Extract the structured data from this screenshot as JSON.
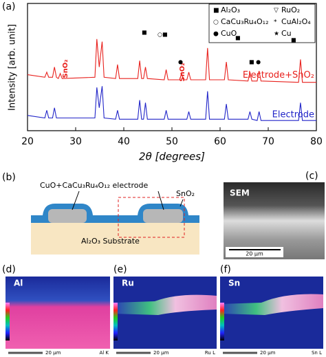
{
  "chart_data": {
    "type": "line",
    "panel_label": "(a)",
    "x_label": "2θ [degrees]",
    "y_label": "Intensity [arb. unit]",
    "xlim": [
      20,
      80
    ],
    "xticks": [
      20,
      30,
      40,
      50,
      60,
      70,
      80
    ],
    "ylim": [
      0,
      100
    ],
    "x": [
      20,
      23.6,
      24.0,
      24.4,
      25.2,
      25.6,
      26.0,
      26.4,
      26.8,
      27.2,
      34.0,
      34.4,
      34.9,
      35.5,
      35.9,
      38.3,
      38.7,
      39.1,
      42.9,
      43.3,
      43.7,
      44.1,
      44.5,
      44.9,
      48.4,
      48.8,
      49.2,
      51.6,
      52.0,
      52.4,
      53.1,
      53.5,
      53.9,
      57.0,
      57.4,
      57.8,
      60.9,
      61.3,
      61.7,
      65.8,
      66.2,
      66.6,
      67.7,
      68.1,
      68.5,
      76.3,
      76.7,
      77.1,
      80
    ],
    "series": [
      {
        "name": "Electrode+SnO₂",
        "color": "#e8201c",
        "values": [
          44,
          42,
          46,
          42,
          42,
          50,
          42,
          41,
          45,
          41,
          42,
          72,
          50,
          70,
          42,
          41,
          52,
          41,
          41,
          55,
          41,
          41,
          50,
          41,
          40,
          48,
          40,
          40,
          45,
          40,
          40,
          46,
          40,
          40,
          65,
          40,
          40,
          54,
          40,
          39,
          46,
          39,
          39,
          47,
          39,
          38,
          56,
          38,
          38
        ]
      },
      {
        "name": "Electrode",
        "color": "#2024c8",
        "values": [
          12,
          10,
          16,
          10,
          10,
          18,
          10,
          10,
          10,
          10,
          10,
          34,
          18,
          35,
          10,
          9,
          16,
          9,
          9,
          24,
          9,
          9,
          22,
          9,
          9,
          16,
          9,
          9,
          9,
          9,
          9,
          15,
          9,
          9,
          31,
          9,
          9,
          21,
          9,
          9,
          15,
          9,
          8,
          15,
          8,
          8,
          22,
          8,
          8
        ]
      }
    ],
    "annotations": [
      "SnO₂",
      "SnO₂"
    ],
    "phase_key": [
      {
        "symbol": "■",
        "label": "Al₂O₃"
      },
      {
        "symbol": "▽",
        "label": "RuO₂"
      },
      {
        "symbol": "○",
        "label": "CaCu₃Ru₄O₁₂"
      },
      {
        "symbol": "*",
        "label": "CuAl₂O₄"
      },
      {
        "symbol": "●",
        "label": "CuO"
      },
      {
        "symbol": "★",
        "label": "Cu"
      }
    ]
  },
  "panels": {
    "b": {
      "label": "(b)",
      "electrode": "CuO+CaCu₃Ru₄O₁₂ electrode",
      "layer": "SnO₂",
      "substrate": "Al₂O₃ Substrate"
    },
    "c": {
      "label": "(c)",
      "title": "SEM",
      "scale": "20 μm"
    },
    "d": {
      "label": "(d)",
      "title": "Al",
      "scale": "20 μm",
      "line": "Al K"
    },
    "e": {
      "label": "(e)",
      "title": "Ru",
      "scale": "20 μm",
      "line": "Ru L"
    },
    "f": {
      "label": "(f)",
      "title": "Sn",
      "scale": "20 μm",
      "line": "Sn L"
    }
  }
}
